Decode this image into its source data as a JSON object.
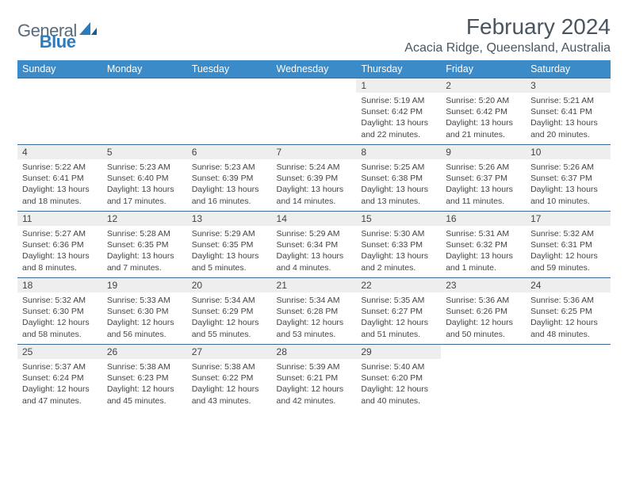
{
  "brand": {
    "part1": "General",
    "part2": "Blue"
  },
  "title": "February 2024",
  "location": "Acacia Ridge, Queensland, Australia",
  "colors": {
    "header_bg": "#3b8bc9",
    "header_fg": "#ffffff",
    "row_border": "#3b6a95",
    "daynum_bg": "#eeeeee",
    "brand_gray": "#5a6b7a",
    "brand_blue": "#2b7bbf",
    "text": "#444444",
    "page_bg": "#ffffff"
  },
  "typography": {
    "title_fontsize": 28,
    "location_fontsize": 16,
    "header_fontsize": 12.5,
    "body_fontsize": 10.5
  },
  "weekdays": [
    "Sunday",
    "Monday",
    "Tuesday",
    "Wednesday",
    "Thursday",
    "Friday",
    "Saturday"
  ],
  "weeks": [
    [
      {
        "n": "",
        "sr": "",
        "ss": "",
        "dl": ""
      },
      {
        "n": "",
        "sr": "",
        "ss": "",
        "dl": ""
      },
      {
        "n": "",
        "sr": "",
        "ss": "",
        "dl": ""
      },
      {
        "n": "",
        "sr": "",
        "ss": "",
        "dl": ""
      },
      {
        "n": "1",
        "sr": "Sunrise: 5:19 AM",
        "ss": "Sunset: 6:42 PM",
        "dl": "Daylight: 13 hours and 22 minutes."
      },
      {
        "n": "2",
        "sr": "Sunrise: 5:20 AM",
        "ss": "Sunset: 6:42 PM",
        "dl": "Daylight: 13 hours and 21 minutes."
      },
      {
        "n": "3",
        "sr": "Sunrise: 5:21 AM",
        "ss": "Sunset: 6:41 PM",
        "dl": "Daylight: 13 hours and 20 minutes."
      }
    ],
    [
      {
        "n": "4",
        "sr": "Sunrise: 5:22 AM",
        "ss": "Sunset: 6:41 PM",
        "dl": "Daylight: 13 hours and 18 minutes."
      },
      {
        "n": "5",
        "sr": "Sunrise: 5:23 AM",
        "ss": "Sunset: 6:40 PM",
        "dl": "Daylight: 13 hours and 17 minutes."
      },
      {
        "n": "6",
        "sr": "Sunrise: 5:23 AM",
        "ss": "Sunset: 6:39 PM",
        "dl": "Daylight: 13 hours and 16 minutes."
      },
      {
        "n": "7",
        "sr": "Sunrise: 5:24 AM",
        "ss": "Sunset: 6:39 PM",
        "dl": "Daylight: 13 hours and 14 minutes."
      },
      {
        "n": "8",
        "sr": "Sunrise: 5:25 AM",
        "ss": "Sunset: 6:38 PM",
        "dl": "Daylight: 13 hours and 13 minutes."
      },
      {
        "n": "9",
        "sr": "Sunrise: 5:26 AM",
        "ss": "Sunset: 6:37 PM",
        "dl": "Daylight: 13 hours and 11 minutes."
      },
      {
        "n": "10",
        "sr": "Sunrise: 5:26 AM",
        "ss": "Sunset: 6:37 PM",
        "dl": "Daylight: 13 hours and 10 minutes."
      }
    ],
    [
      {
        "n": "11",
        "sr": "Sunrise: 5:27 AM",
        "ss": "Sunset: 6:36 PM",
        "dl": "Daylight: 13 hours and 8 minutes."
      },
      {
        "n": "12",
        "sr": "Sunrise: 5:28 AM",
        "ss": "Sunset: 6:35 PM",
        "dl": "Daylight: 13 hours and 7 minutes."
      },
      {
        "n": "13",
        "sr": "Sunrise: 5:29 AM",
        "ss": "Sunset: 6:35 PM",
        "dl": "Daylight: 13 hours and 5 minutes."
      },
      {
        "n": "14",
        "sr": "Sunrise: 5:29 AM",
        "ss": "Sunset: 6:34 PM",
        "dl": "Daylight: 13 hours and 4 minutes."
      },
      {
        "n": "15",
        "sr": "Sunrise: 5:30 AM",
        "ss": "Sunset: 6:33 PM",
        "dl": "Daylight: 13 hours and 2 minutes."
      },
      {
        "n": "16",
        "sr": "Sunrise: 5:31 AM",
        "ss": "Sunset: 6:32 PM",
        "dl": "Daylight: 13 hours and 1 minute."
      },
      {
        "n": "17",
        "sr": "Sunrise: 5:32 AM",
        "ss": "Sunset: 6:31 PM",
        "dl": "Daylight: 12 hours and 59 minutes."
      }
    ],
    [
      {
        "n": "18",
        "sr": "Sunrise: 5:32 AM",
        "ss": "Sunset: 6:30 PM",
        "dl": "Daylight: 12 hours and 58 minutes."
      },
      {
        "n": "19",
        "sr": "Sunrise: 5:33 AM",
        "ss": "Sunset: 6:30 PM",
        "dl": "Daylight: 12 hours and 56 minutes."
      },
      {
        "n": "20",
        "sr": "Sunrise: 5:34 AM",
        "ss": "Sunset: 6:29 PM",
        "dl": "Daylight: 12 hours and 55 minutes."
      },
      {
        "n": "21",
        "sr": "Sunrise: 5:34 AM",
        "ss": "Sunset: 6:28 PM",
        "dl": "Daylight: 12 hours and 53 minutes."
      },
      {
        "n": "22",
        "sr": "Sunrise: 5:35 AM",
        "ss": "Sunset: 6:27 PM",
        "dl": "Daylight: 12 hours and 51 minutes."
      },
      {
        "n": "23",
        "sr": "Sunrise: 5:36 AM",
        "ss": "Sunset: 6:26 PM",
        "dl": "Daylight: 12 hours and 50 minutes."
      },
      {
        "n": "24",
        "sr": "Sunrise: 5:36 AM",
        "ss": "Sunset: 6:25 PM",
        "dl": "Daylight: 12 hours and 48 minutes."
      }
    ],
    [
      {
        "n": "25",
        "sr": "Sunrise: 5:37 AM",
        "ss": "Sunset: 6:24 PM",
        "dl": "Daylight: 12 hours and 47 minutes."
      },
      {
        "n": "26",
        "sr": "Sunrise: 5:38 AM",
        "ss": "Sunset: 6:23 PM",
        "dl": "Daylight: 12 hours and 45 minutes."
      },
      {
        "n": "27",
        "sr": "Sunrise: 5:38 AM",
        "ss": "Sunset: 6:22 PM",
        "dl": "Daylight: 12 hours and 43 minutes."
      },
      {
        "n": "28",
        "sr": "Sunrise: 5:39 AM",
        "ss": "Sunset: 6:21 PM",
        "dl": "Daylight: 12 hours and 42 minutes."
      },
      {
        "n": "29",
        "sr": "Sunrise: 5:40 AM",
        "ss": "Sunset: 6:20 PM",
        "dl": "Daylight: 12 hours and 40 minutes."
      },
      {
        "n": "",
        "sr": "",
        "ss": "",
        "dl": ""
      },
      {
        "n": "",
        "sr": "",
        "ss": "",
        "dl": ""
      }
    ]
  ]
}
